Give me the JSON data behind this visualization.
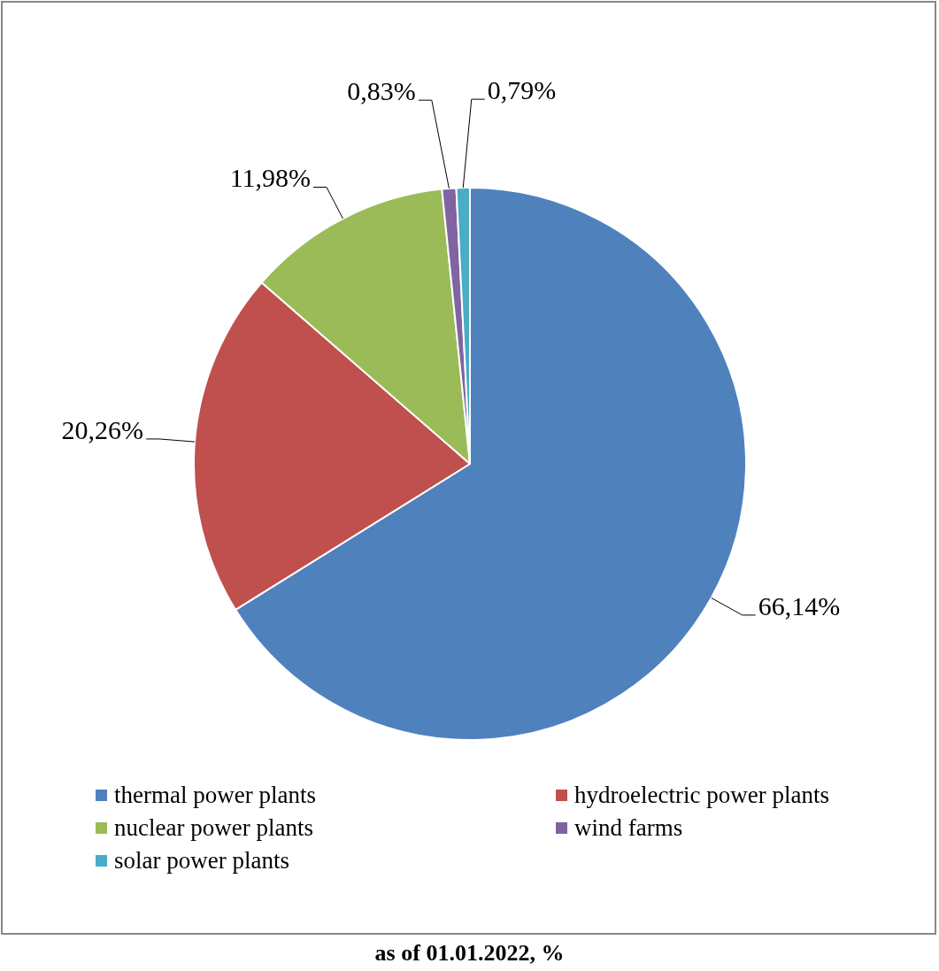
{
  "chart_data": {
    "type": "pie",
    "title": "as of 01.01.2022, %",
    "categories": [
      "thermal power plants",
      "hydroelectric power plants",
      "nuclear power plants",
      "wind farms",
      "solar power plants"
    ],
    "values": [
      66.14,
      20.26,
      11.98,
      0.83,
      0.79
    ],
    "value_labels": [
      "66,14%",
      "20,26%",
      "11,98%",
      "0,83%",
      "0,79%"
    ],
    "colors": [
      "#4f81bd",
      "#c0504d",
      "#9bbb59",
      "#8064a2",
      "#4bacc6"
    ],
    "legend": "bottom"
  }
}
